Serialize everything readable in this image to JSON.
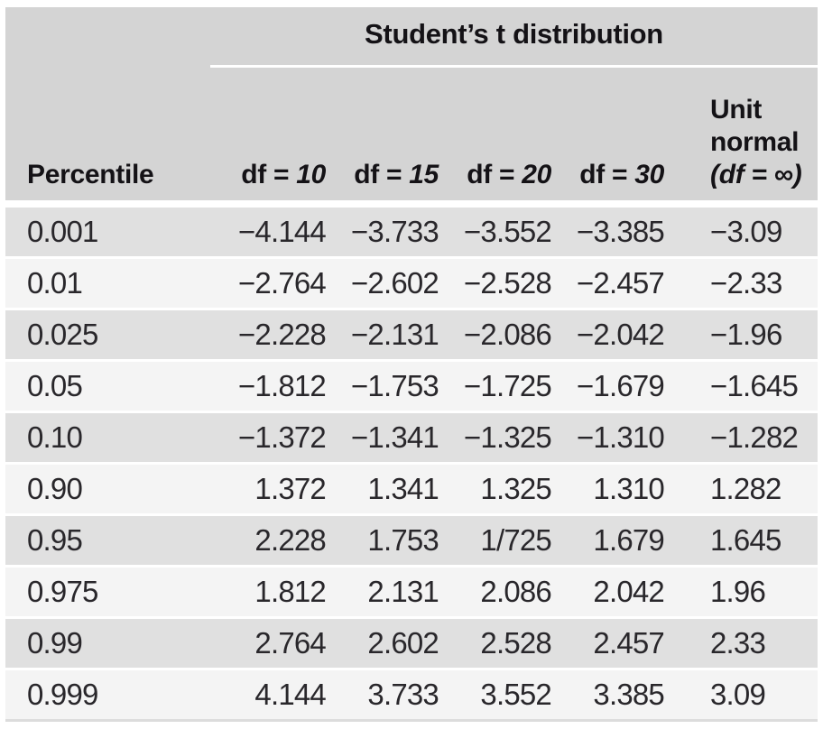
{
  "chart_data": {
    "type": "table",
    "title": "Student’s t distribution",
    "columns": [
      "Percentile",
      "df = 10",
      "df = 15",
      "df = 20",
      "df = 30",
      "Unit normal (df = ∞)"
    ],
    "rows": [
      [
        "0.001",
        "−4.144",
        "−3.733",
        "−3.552",
        "−3.385",
        "−3.09"
      ],
      [
        "0.01",
        "−2.764",
        "−2.602",
        "−2.528",
        "−2.457",
        "−2.33"
      ],
      [
        "0.025",
        "−2.228",
        "−2.131",
        "−2.086",
        "−2.042",
        "−1.96"
      ],
      [
        "0.05",
        "−1.812",
        "−1.753",
        "−1.725",
        "−1.679",
        "−1.645"
      ],
      [
        "0.10",
        "−1.372",
        "−1.341",
        "−1.325",
        "−1.310",
        "−1.282"
      ],
      [
        "0.90",
        "1.372",
        "1.341",
        "1.325",
        "1.310",
        "1.282"
      ],
      [
        "0.95",
        "2.228",
        "1.753",
        "1/725",
        "1.679",
        "1.645"
      ],
      [
        "0.975",
        "1.812",
        "2.131",
        "2.086",
        "2.042",
        "1.96"
      ],
      [
        "0.99",
        "2.764",
        "2.602",
        "2.528",
        "2.457",
        "2.33"
      ],
      [
        "0.999",
        "4.144",
        "3.733",
        "3.552",
        "3.385",
        "3.09"
      ]
    ]
  },
  "header_parts": {
    "percentile": "Percentile",
    "df_cols": [
      {
        "df": "df",
        "eq": " = ",
        "value": "10"
      },
      {
        "df": "df",
        "eq": " = ",
        "value": "15"
      },
      {
        "df": "df",
        "eq": " = ",
        "value": "20"
      },
      {
        "df": "df",
        "eq": " = ",
        "value": "30"
      }
    ],
    "unit_normal_label": "Unit normal",
    "unit_normal_sub": "(df = ∞)"
  },
  "colors": {
    "header_bg": "#d4d4d4",
    "row_dark_bg": "#e0e0e0",
    "row_light_bg": "#f4f4f4",
    "rule": "#ffffff",
    "text": "#29272b"
  }
}
